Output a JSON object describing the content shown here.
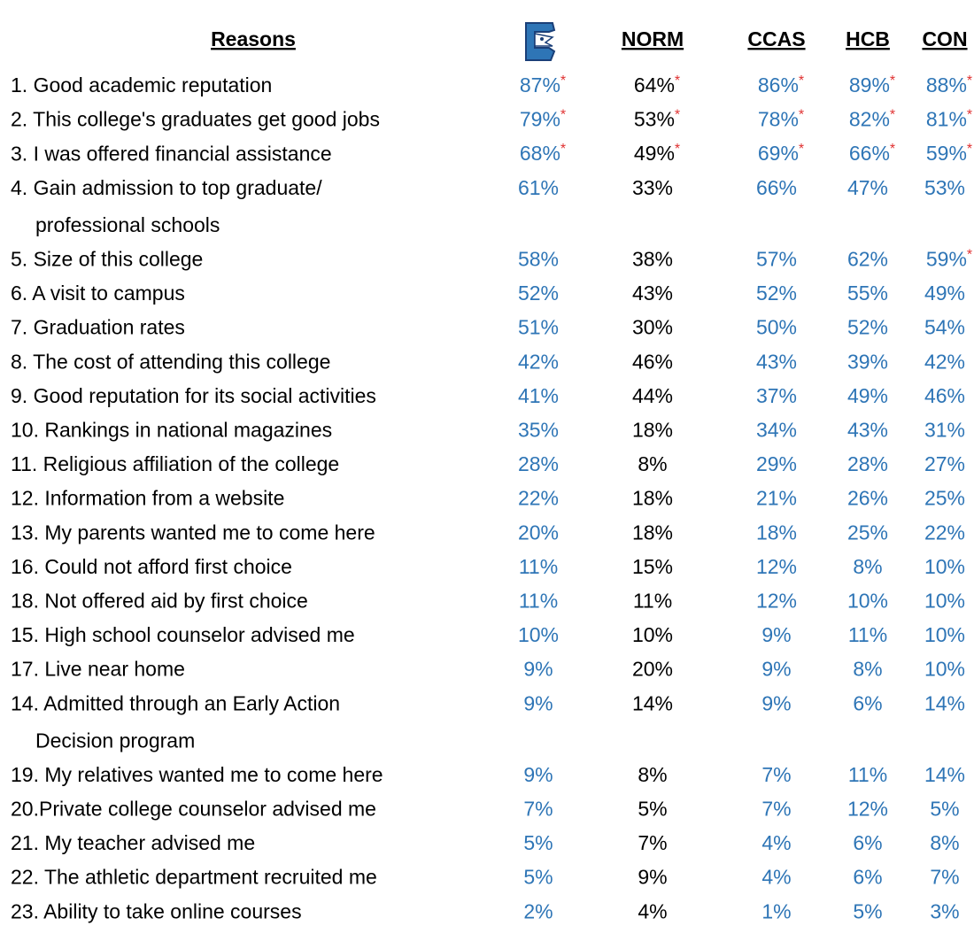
{
  "header": {
    "title": "Reasons",
    "columns": [
      {
        "color": "#2e75b6"
      },
      {
        "label": "NORM",
        "color": "#000000"
      },
      {
        "label": "CCAS",
        "color": "#2e75b6"
      },
      {
        "label": "HCB",
        "color": "#2e75b6"
      },
      {
        "label": "CON",
        "color": "#2e75b6"
      }
    ]
  },
  "note_color": "#e03030",
  "rows": [
    {
      "reason": [
        "1. Good academic reputation"
      ],
      "cells": [
        {
          "value": "87%",
          "note": "*"
        },
        {
          "value": "64%",
          "note": "*"
        },
        {
          "value": "86%",
          "note": "*"
        },
        {
          "value": "89%",
          "note": "*"
        },
        {
          "value": "88%",
          "note": "*"
        }
      ]
    },
    {
      "reason": [
        "2. This college's graduates get good jobs"
      ],
      "cells": [
        {
          "value": "79%",
          "note": "*"
        },
        {
          "value": "53%",
          "note": "*"
        },
        {
          "value": "78%",
          "note": "*"
        },
        {
          "value": "82%",
          "note": "*"
        },
        {
          "value": "81%",
          "note": "*"
        }
      ]
    },
    {
      "reason": [
        "3. I was offered financial assistance"
      ],
      "cells": [
        {
          "value": "68%",
          "note": "*"
        },
        {
          "value": "49%",
          "note": "*"
        },
        {
          "value": "69%",
          "note": "*"
        },
        {
          "value": "66%",
          "note": "*"
        },
        {
          "value": "59%",
          "note": "*"
        }
      ]
    },
    {
      "reason": [
        "4. Gain admission to top graduate/",
        "professional schools"
      ],
      "cells": [
        "61%",
        "33%",
        "66%",
        "47%",
        "53%"
      ]
    },
    {
      "reason": [
        "5. Size of this college"
      ],
      "cells": [
        "58%",
        "38%",
        "57%",
        "62%",
        {
          "value": "59%",
          "note": "*"
        }
      ]
    },
    {
      "reason": [
        "6. A visit to campus"
      ],
      "cells": [
        "52%",
        "43%",
        "52%",
        "55%",
        "49%"
      ]
    },
    {
      "reason": [
        "7. Graduation rates"
      ],
      "cells": [
        "51%",
        "30%",
        "50%",
        "52%",
        "54%"
      ]
    },
    {
      "reason": [
        "8. The cost of attending this college"
      ],
      "cells": [
        "42%",
        "46%",
        "43%",
        "39%",
        "42%"
      ]
    },
    {
      "reason": [
        "9. Good reputation for its social activities"
      ],
      "cells": [
        "41%",
        "44%",
        "37%",
        "49%",
        "46%"
      ]
    },
    {
      "reason": [
        "10. Rankings in national magazines"
      ],
      "cells": [
        "35%",
        "18%",
        "34%",
        "43%",
        "31%"
      ]
    },
    {
      "reason": [
        "11. Religious affiliation of the college"
      ],
      "cells": [
        "28%",
        "8%",
        "29%",
        "28%",
        "27%"
      ]
    },
    {
      "reason": [
        "12. Information from a website"
      ],
      "cells": [
        "22%",
        "18%",
        "21%",
        "26%",
        "25%"
      ]
    },
    {
      "reason": [
        "13. My parents wanted me to come here"
      ],
      "cells": [
        "20%",
        "18%",
        "18%",
        "25%",
        "22%"
      ]
    },
    {
      "reason": [
        "16. Could not afford first choice"
      ],
      "cells": [
        "11%",
        "15%",
        "12%",
        "8%",
        "10%"
      ]
    },
    {
      "reason": [
        "18. Not offered aid by first choice"
      ],
      "cells": [
        "11%",
        "11%",
        "12%",
        "10%",
        "10%"
      ]
    },
    {
      "reason": [
        "15. High school counselor advised me"
      ],
      "cells": [
        "10%",
        "10%",
        "9%",
        "11%",
        "10%"
      ]
    },
    {
      "reason": [
        "17. Live near home"
      ],
      "cells": [
        "9%",
        "20%",
        "9%",
        "8%",
        "10%"
      ]
    },
    {
      "reason": [
        "14. Admitted through an Early Action",
        "Decision program"
      ],
      "cells": [
        "9%",
        "14%",
        "9%",
        "6%",
        "14%"
      ]
    },
    {
      "reason": [
        "19. My relatives wanted me to come here"
      ],
      "cells": [
        "9%",
        "8%",
        "7%",
        "11%",
        "14%"
      ]
    },
    {
      "reason": [
        "20.Private college counselor advised me"
      ],
      "cells": [
        "7%",
        "5%",
        "7%",
        "12%",
        "5%"
      ]
    },
    {
      "reason": [
        "21. My teacher advised me"
      ],
      "cells": [
        "5%",
        "7%",
        "4%",
        "6%",
        "8%"
      ]
    },
    {
      "reason": [
        "22. The athletic department recruited me"
      ],
      "cells": [
        "5%",
        "9%",
        "4%",
        "6%",
        "7%"
      ]
    },
    {
      "reason": [
        "23. Ability to take online courses"
      ],
      "cells": [
        "2%",
        "4%",
        "1%",
        "5%",
        "3%"
      ]
    }
  ]
}
